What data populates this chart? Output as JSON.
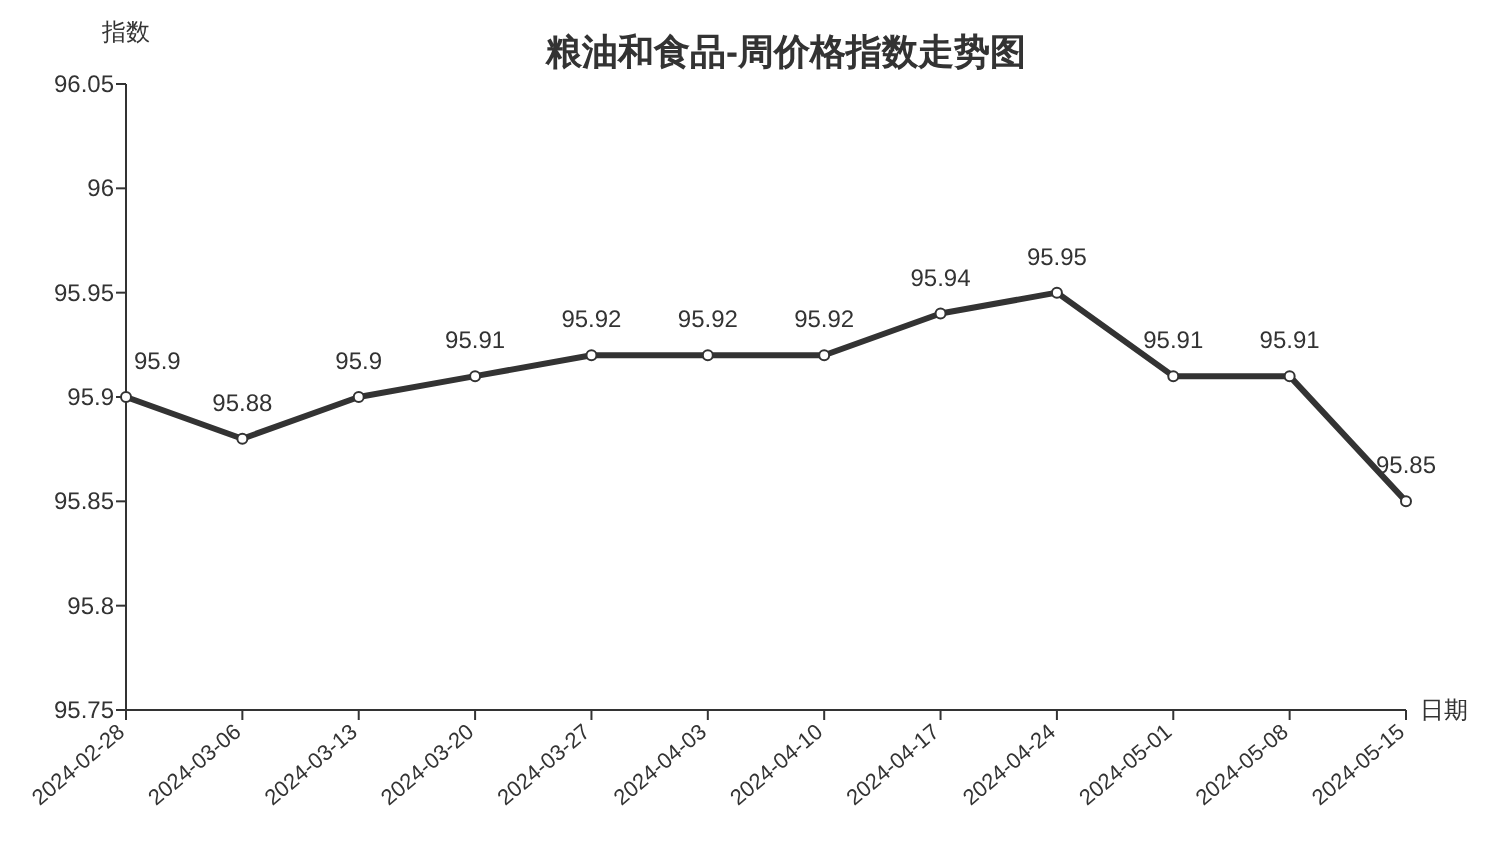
{
  "chart_data": {
    "type": "line",
    "title": "粮油和食品-周价格指数走势图",
    "ylabel": "指数",
    "xlabel": "日期",
    "categories": [
      "2024-02-28",
      "2024-03-06",
      "2024-03-13",
      "2024-03-20",
      "2024-03-27",
      "2024-04-03",
      "2024-04-10",
      "2024-04-17",
      "2024-04-24",
      "2024-05-01",
      "2024-05-08",
      "2024-05-15"
    ],
    "series": [
      {
        "color": "#333333",
        "values": [
          95.9,
          95.88,
          95.9,
          95.91,
          95.92,
          95.92,
          95.92,
          95.94,
          95.95,
          95.91,
          95.91,
          95.85
        ]
      }
    ],
    "ylim": [
      95.75,
      96.05
    ],
    "yticks": [
      95.75,
      95.8,
      95.85,
      95.9,
      95.95,
      96,
      96.05
    ],
    "data_labels": true,
    "marker": "circle",
    "line_style": "solid",
    "grid": false
  }
}
